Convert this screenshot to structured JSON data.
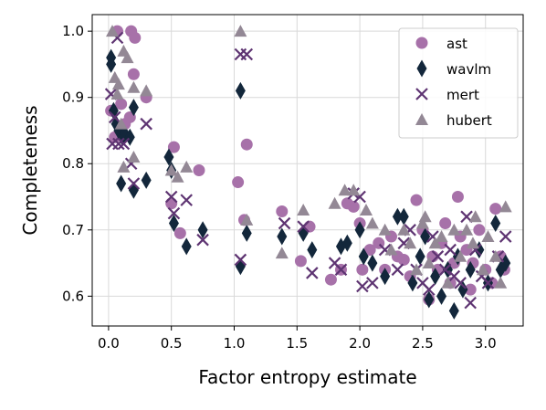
{
  "chart_data": {
    "type": "scatter",
    "xlabel": "Factor entropy estimate",
    "ylabel": "Completeness",
    "xlim": [
      -0.13,
      3.3
    ],
    "ylim": [
      0.555,
      1.025
    ],
    "xticks": [
      0.0,
      0.5,
      1.0,
      1.5,
      2.0,
      2.5,
      3.0
    ],
    "xtick_labels": [
      "0.0",
      "0.5",
      "1.0",
      "1.5",
      "2.0",
      "2.5",
      "3.0"
    ],
    "yticks": [
      0.6,
      0.7,
      0.8,
      0.9,
      1.0
    ],
    "ytick_labels": [
      "0.6",
      "0.7",
      "0.8",
      "0.9",
      "1.0"
    ],
    "grid": true,
    "legend_position": "top-right",
    "series": [
      {
        "name": "ast",
        "marker": "circle",
        "color": "#a771a9",
        "points": [
          [
            0.07,
            1.0
          ],
          [
            0.18,
            1.0
          ],
          [
            0.21,
            0.99
          ],
          [
            0.02,
            0.88
          ],
          [
            0.1,
            0.89
          ],
          [
            0.13,
            0.86
          ],
          [
            0.17,
            0.87
          ],
          [
            0.2,
            0.935
          ],
          [
            0.05,
            0.84
          ],
          [
            0.3,
            0.9
          ],
          [
            0.52,
            0.825
          ],
          [
            0.5,
            0.74
          ],
          [
            0.57,
            0.695
          ],
          [
            0.72,
            0.79
          ],
          [
            1.03,
            0.772
          ],
          [
            1.1,
            0.829
          ],
          [
            1.08,
            0.715
          ],
          [
            1.38,
            0.728
          ],
          [
            1.53,
            0.653
          ],
          [
            1.6,
            0.705
          ],
          [
            1.77,
            0.625
          ],
          [
            1.85,
            0.64
          ],
          [
            1.9,
            0.74
          ],
          [
            1.95,
            0.735
          ],
          [
            2.0,
            0.71
          ],
          [
            2.02,
            0.64
          ],
          [
            2.08,
            0.67
          ],
          [
            2.15,
            0.68
          ],
          [
            2.2,
            0.64
          ],
          [
            2.25,
            0.69
          ],
          [
            2.3,
            0.66
          ],
          [
            2.35,
            0.655
          ],
          [
            2.4,
            0.63
          ],
          [
            2.45,
            0.745
          ],
          [
            2.5,
            0.7
          ],
          [
            2.55,
            0.595
          ],
          [
            2.58,
            0.66
          ],
          [
            2.62,
            0.64
          ],
          [
            2.65,
            0.68
          ],
          [
            2.68,
            0.71
          ],
          [
            2.72,
            0.62
          ],
          [
            2.75,
            0.65
          ],
          [
            2.78,
            0.75
          ],
          [
            2.8,
            0.69
          ],
          [
            2.85,
            0.67
          ],
          [
            2.88,
            0.61
          ],
          [
            2.9,
            0.65
          ],
          [
            2.95,
            0.7
          ],
          [
            3.0,
            0.64
          ],
          [
            3.05,
            0.62
          ],
          [
            3.08,
            0.732
          ],
          [
            3.12,
            0.66
          ],
          [
            3.15,
            0.64
          ]
        ]
      },
      {
        "name": "wavlm",
        "marker": "thin_diamond",
        "color": "#13273b",
        "points": [
          [
            0.02,
            0.96
          ],
          [
            0.02,
            0.95
          ],
          [
            0.04,
            0.88
          ],
          [
            0.06,
            0.86
          ],
          [
            0.08,
            0.85
          ],
          [
            0.11,
            0.84
          ],
          [
            0.13,
            0.845
          ],
          [
            0.17,
            0.84
          ],
          [
            0.2,
            0.885
          ],
          [
            0.1,
            0.77
          ],
          [
            0.2,
            0.76
          ],
          [
            0.3,
            0.775
          ],
          [
            0.48,
            0.81
          ],
          [
            0.5,
            0.79
          ],
          [
            0.52,
            0.71
          ],
          [
            0.62,
            0.675
          ],
          [
            0.75,
            0.7
          ],
          [
            1.05,
            0.91
          ],
          [
            1.05,
            0.645
          ],
          [
            1.1,
            0.695
          ],
          [
            1.38,
            0.69
          ],
          [
            1.55,
            0.695
          ],
          [
            1.62,
            0.67
          ],
          [
            1.85,
            0.675
          ],
          [
            1.9,
            0.68
          ],
          [
            2.0,
            0.7
          ],
          [
            2.03,
            0.66
          ],
          [
            2.1,
            0.65
          ],
          [
            2.2,
            0.63
          ],
          [
            2.3,
            0.72
          ],
          [
            2.35,
            0.72
          ],
          [
            2.42,
            0.62
          ],
          [
            2.48,
            0.66
          ],
          [
            2.52,
            0.69
          ],
          [
            2.55,
            0.595
          ],
          [
            2.6,
            0.63
          ],
          [
            2.65,
            0.6
          ],
          [
            2.7,
            0.64
          ],
          [
            2.75,
            0.578
          ],
          [
            2.78,
            0.66
          ],
          [
            2.82,
            0.61
          ],
          [
            2.88,
            0.64
          ],
          [
            2.95,
            0.67
          ],
          [
            3.02,
            0.62
          ],
          [
            3.08,
            0.71
          ],
          [
            3.12,
            0.64
          ],
          [
            3.16,
            0.65
          ]
        ]
      },
      {
        "name": "mert",
        "marker": "x",
        "color": "#5e3472",
        "points": [
          [
            0.02,
            0.905
          ],
          [
            0.05,
            0.87
          ],
          [
            0.07,
            0.99
          ],
          [
            0.03,
            0.83
          ],
          [
            0.08,
            0.83
          ],
          [
            0.12,
            0.83
          ],
          [
            0.18,
            0.8
          ],
          [
            0.2,
            0.77
          ],
          [
            0.3,
            0.86
          ],
          [
            0.5,
            0.75
          ],
          [
            0.52,
            0.725
          ],
          [
            0.62,
            0.745
          ],
          [
            0.75,
            0.685
          ],
          [
            1.05,
            0.965
          ],
          [
            1.1,
            0.965
          ],
          [
            1.05,
            0.655
          ],
          [
            1.4,
            0.71
          ],
          [
            1.55,
            0.705
          ],
          [
            1.62,
            0.635
          ],
          [
            1.8,
            0.65
          ],
          [
            1.85,
            0.64
          ],
          [
            1.95,
            0.755
          ],
          [
            2.0,
            0.75
          ],
          [
            2.02,
            0.615
          ],
          [
            2.1,
            0.62
          ],
          [
            2.2,
            0.67
          ],
          [
            2.3,
            0.64
          ],
          [
            2.35,
            0.68
          ],
          [
            2.4,
            0.7
          ],
          [
            2.45,
            0.64
          ],
          [
            2.5,
            0.62
          ],
          [
            2.55,
            0.61
          ],
          [
            2.58,
            0.69
          ],
          [
            2.62,
            0.66
          ],
          [
            2.68,
            0.64
          ],
          [
            2.72,
            0.67
          ],
          [
            2.75,
            0.63
          ],
          [
            2.8,
            0.62
          ],
          [
            2.85,
            0.72
          ],
          [
            2.88,
            0.59
          ],
          [
            2.92,
            0.67
          ],
          [
            2.97,
            0.63
          ],
          [
            3.02,
            0.62
          ],
          [
            3.1,
            0.66
          ],
          [
            3.16,
            0.69
          ]
        ]
      },
      {
        "name": "hubert",
        "marker": "triangle",
        "color": "#938895",
        "points": [
          [
            0.03,
            1.0
          ],
          [
            0.05,
            0.93
          ],
          [
            0.08,
            0.92
          ],
          [
            0.12,
            0.97
          ],
          [
            0.15,
            0.96
          ],
          [
            0.07,
            0.905
          ],
          [
            0.2,
            0.915
          ],
          [
            0.1,
            0.86
          ],
          [
            0.12,
            0.795
          ],
          [
            0.2,
            0.81
          ],
          [
            0.3,
            0.91
          ],
          [
            0.5,
            0.79
          ],
          [
            0.55,
            0.78
          ],
          [
            0.62,
            0.795
          ],
          [
            1.05,
            1.0
          ],
          [
            1.1,
            0.715
          ],
          [
            1.38,
            0.665
          ],
          [
            1.55,
            0.73
          ],
          [
            1.8,
            0.74
          ],
          [
            1.88,
            0.76
          ],
          [
            1.95,
            0.76
          ],
          [
            2.05,
            0.73
          ],
          [
            2.1,
            0.71
          ],
          [
            2.2,
            0.7
          ],
          [
            2.25,
            0.67
          ],
          [
            2.35,
            0.7
          ],
          [
            2.4,
            0.68
          ],
          [
            2.45,
            0.64
          ],
          [
            2.5,
            0.71
          ],
          [
            2.52,
            0.72
          ],
          [
            2.55,
            0.65
          ],
          [
            2.6,
            0.68
          ],
          [
            2.65,
            0.69
          ],
          [
            2.7,
            0.62
          ],
          [
            2.75,
            0.7
          ],
          [
            2.8,
            0.66
          ],
          [
            2.85,
            0.7
          ],
          [
            2.9,
            0.68
          ],
          [
            2.92,
            0.72
          ],
          [
            2.98,
            0.64
          ],
          [
            3.02,
            0.69
          ],
          [
            3.08,
            0.66
          ],
          [
            3.12,
            0.62
          ],
          [
            3.16,
            0.735
          ]
        ]
      }
    ]
  }
}
